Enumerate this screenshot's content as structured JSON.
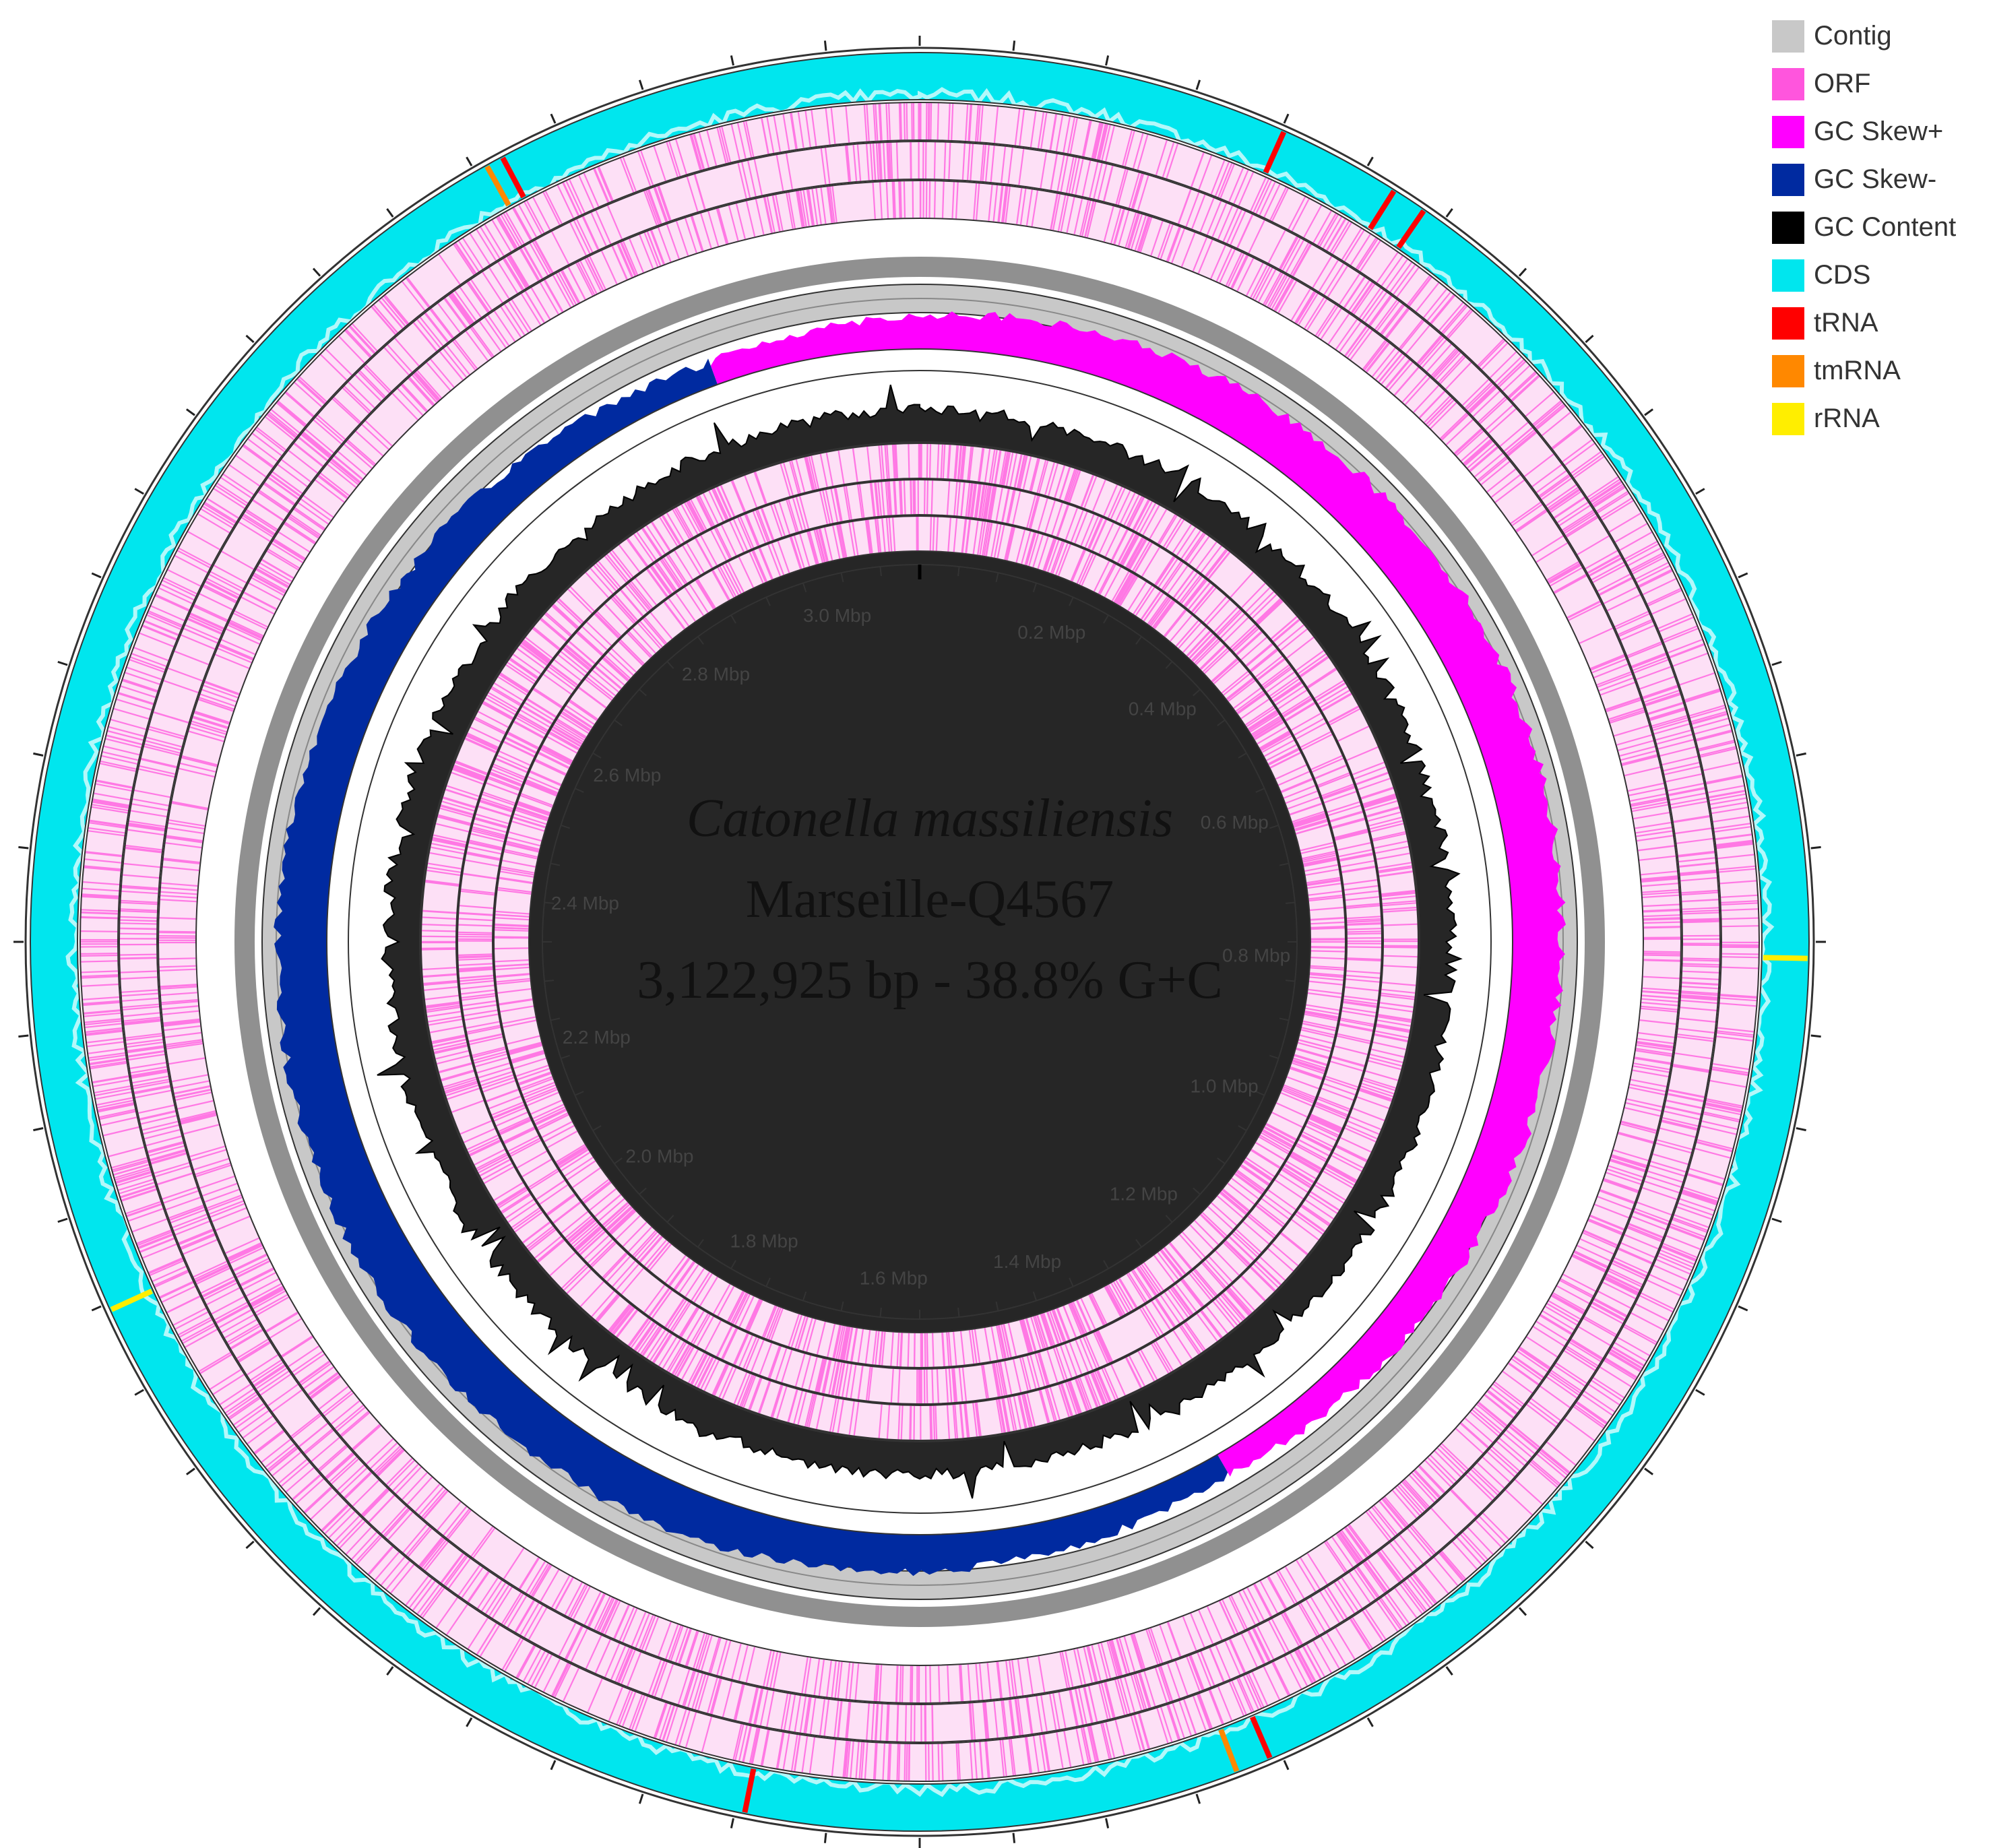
{
  "legend": [
    {
      "label": "Contig",
      "color": "#c8c8c8"
    },
    {
      "label": "ORF",
      "color": "#ff55dd"
    },
    {
      "label": "GC Skew+",
      "color": "#ff00ff"
    },
    {
      "label": "GC Skew-",
      "color": "#002aa0"
    },
    {
      "label": "GC Content",
      "color": "#000000"
    },
    {
      "label": "CDS",
      "color": "#00e6ee"
    },
    {
      "label": "tRNA",
      "color": "#ff0000"
    },
    {
      "label": "tmRNA",
      "color": "#ff8800"
    },
    {
      "label": "rRNA",
      "color": "#ffee00"
    }
  ],
  "genome": {
    "species": "Catonella massiliensis",
    "strain": "Marseille-Q4567",
    "stats": "3,122,925 bp - 38.8% G+C",
    "length_bp": 3122925
  },
  "scale_labels": [
    {
      "label": "0.2 Mbp",
      "mbp": 0.2
    },
    {
      "label": "0.4 Mbp",
      "mbp": 0.4
    },
    {
      "label": "0.6 Mbp",
      "mbp": 0.6
    },
    {
      "label": "0.8 Mbp",
      "mbp": 0.8
    },
    {
      "label": "1.0 Mbp",
      "mbp": 1.0
    },
    {
      "label": "1.2 Mbp",
      "mbp": 1.2
    },
    {
      "label": "1.4 Mbp",
      "mbp": 1.4
    },
    {
      "label": "1.6 Mbp",
      "mbp": 1.6
    },
    {
      "label": "1.8 Mbp",
      "mbp": 1.8
    },
    {
      "label": "2.0 Mbp",
      "mbp": 2.0
    },
    {
      "label": "2.2 Mbp",
      "mbp": 2.2
    },
    {
      "label": "2.4 Mbp",
      "mbp": 2.4
    },
    {
      "label": "2.6 Mbp",
      "mbp": 2.6
    },
    {
      "label": "2.8 Mbp",
      "mbp": 2.8
    },
    {
      "label": "3.0 Mbp",
      "mbp": 3.0
    }
  ],
  "gc_skew_switch_mbp": [
    1.3,
    2.95
  ],
  "rna_features": [
    {
      "type": "tRNA",
      "mbp": 0.21
    },
    {
      "type": "tRNA",
      "mbp": 0.28
    },
    {
      "type": "tRNA",
      "mbp": 0.3
    },
    {
      "type": "rRNA",
      "mbp": 0.79
    },
    {
      "type": "tRNA",
      "mbp": 1.36
    },
    {
      "type": "tmRNA",
      "mbp": 1.38
    },
    {
      "type": "tRNA",
      "mbp": 1.66
    },
    {
      "type": "rRNA",
      "mbp": 2.13
    },
    {
      "type": "tmRNA",
      "mbp": 2.87
    },
    {
      "type": "tRNA",
      "mbp": 2.88
    }
  ]
}
